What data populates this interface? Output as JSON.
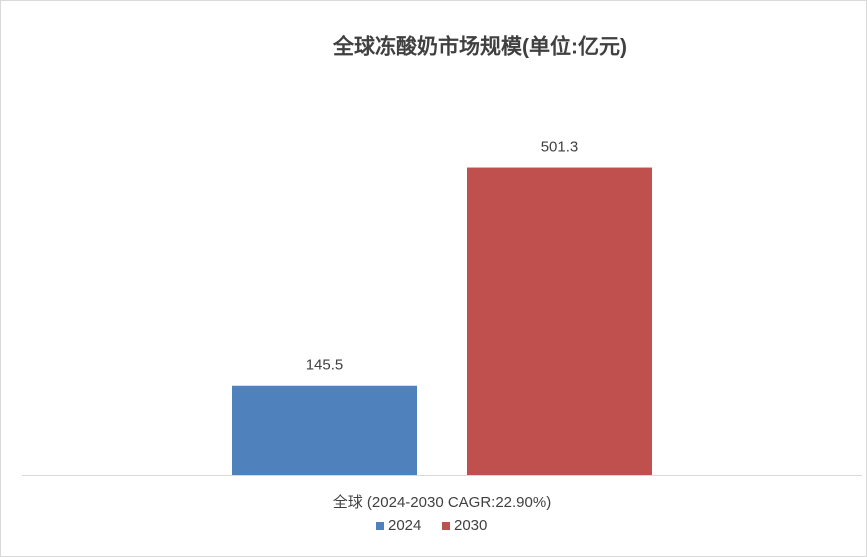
{
  "chart_data": {
    "type": "bar",
    "title": "全球冻酸奶市场规模(单位:亿元)",
    "categories": [
      "全球 (2024-2030 CAGR:22.90%)"
    ],
    "series": [
      {
        "name": "2024",
        "color": "#4f81bd",
        "values": [
          145.5
        ]
      },
      {
        "name": "2030",
        "color": "#c0504d",
        "values": [
          501.3
        ]
      }
    ],
    "ylim": [
      0,
      600
    ],
    "legend": "bottom",
    "grid": false
  }
}
